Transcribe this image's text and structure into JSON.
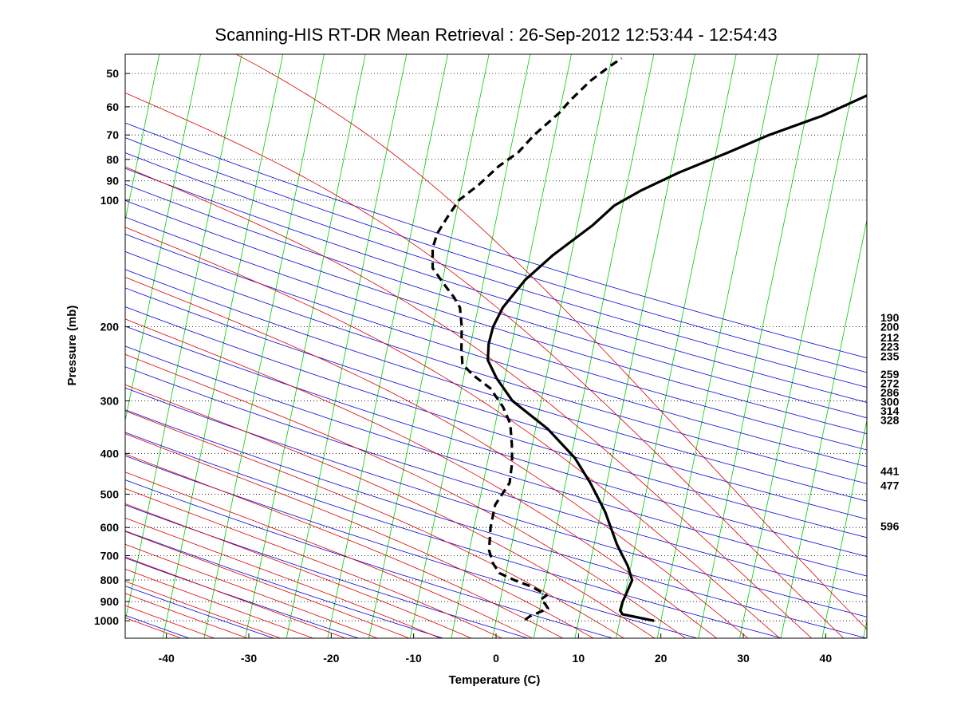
{
  "chart_data": {
    "type": "line",
    "chart_kind": "skew-T log-P diagram",
    "title": "Scanning-HIS RT-DR Mean Retrieval : 26-Sep-2012 12:53:44 - 12:54:43",
    "xlabel": "Temperature (C)",
    "ylabel": "Pressure (mb)",
    "x_ticks": [
      -40,
      -30,
      -20,
      -10,
      0,
      10,
      20,
      30,
      40
    ],
    "y_ticks": [
      50,
      60,
      70,
      80,
      90,
      100,
      200,
      300,
      400,
      500,
      600,
      700,
      800,
      900,
      1000
    ],
    "xlim": [
      -45,
      45
    ],
    "ylim": [
      1100,
      45
    ],
    "y_scale": "log",
    "grid": "horizontal dotted at pressure ticks",
    "right_labels": [
      "190",
      "200",
      "212",
      "223",
      "235",
      "259",
      "272",
      "286",
      "300",
      "314",
      "328",
      "441",
      "477",
      "596"
    ],
    "right_label_pressures": [
      190,
      200,
      212,
      223,
      235,
      259,
      272,
      286,
      300,
      314,
      328,
      441,
      477,
      596
    ],
    "background_lines": {
      "isotherms_color": "#00cc00",
      "dry_adiabats_color": "#0000dd",
      "moist_adiabats_color": "#dd0000"
    },
    "series": [
      {
        "style": "solid",
        "color": "#000000",
        "points": [
          [
            19.2,
            1000
          ],
          [
            15.2,
            965
          ],
          [
            14.8,
            945
          ],
          [
            14.9,
            900
          ],
          [
            15.2,
            850
          ],
          [
            15.5,
            800
          ],
          [
            14.6,
            740
          ],
          [
            12.8,
            660
          ],
          [
            10.5,
            550
          ],
          [
            8.0,
            470
          ],
          [
            5.5,
            410
          ],
          [
            1.5,
            350
          ],
          [
            -3.5,
            300
          ],
          [
            -6.0,
            265
          ],
          [
            -7.5,
            240
          ],
          [
            -7.8,
            220
          ],
          [
            -7.7,
            200
          ],
          [
            -7.0,
            180
          ],
          [
            -5.0,
            155
          ],
          [
            -2.2,
            135
          ],
          [
            1.8,
            115
          ],
          [
            4.0,
            103
          ],
          [
            6.8,
            95
          ],
          [
            11.0,
            86
          ],
          [
            16.5,
            77
          ],
          [
            21.0,
            70
          ],
          [
            27.0,
            63
          ],
          [
            33.0,
            55
          ],
          [
            34.5,
            52
          ]
        ]
      },
      {
        "style": "dashed",
        "color": "#000000",
        "points": [
          [
            3.5,
            995
          ],
          [
            4.0,
            975
          ],
          [
            6.0,
            935
          ],
          [
            5.5,
            910
          ],
          [
            4.9,
            890
          ],
          [
            5.5,
            870
          ],
          [
            4.8,
            855
          ],
          [
            3.5,
            830
          ],
          [
            1.2,
            800
          ],
          [
            -0.8,
            770
          ],
          [
            -1.8,
            730
          ],
          [
            -2.6,
            680
          ],
          [
            -3.0,
            600
          ],
          [
            -3.0,
            530
          ],
          [
            -1.8,
            470
          ],
          [
            -2.0,
            420
          ],
          [
            -2.5,
            380
          ],
          [
            -3.2,
            340
          ],
          [
            -4.5,
            310
          ],
          [
            -6.5,
            280
          ],
          [
            -9.0,
            260
          ],
          [
            -10.5,
            245
          ],
          [
            -11.0,
            225
          ],
          [
            -11.5,
            200
          ],
          [
            -12.2,
            180
          ],
          [
            -13.2,
            170
          ],
          [
            -14.5,
            160
          ],
          [
            -16.5,
            145
          ],
          [
            -17.0,
            130
          ],
          [
            -16.8,
            120
          ],
          [
            -16.0,
            110
          ],
          [
            -15.0,
            100
          ],
          [
            -13.0,
            92
          ],
          [
            -11.0,
            83
          ],
          [
            -9.0,
            77
          ],
          [
            -7.5,
            70
          ],
          [
            -5.0,
            62
          ],
          [
            -4.0,
            58
          ],
          [
            -2.0,
            52
          ],
          [
            0.0,
            48
          ],
          [
            1.2,
            46
          ]
        ]
      }
    ]
  }
}
